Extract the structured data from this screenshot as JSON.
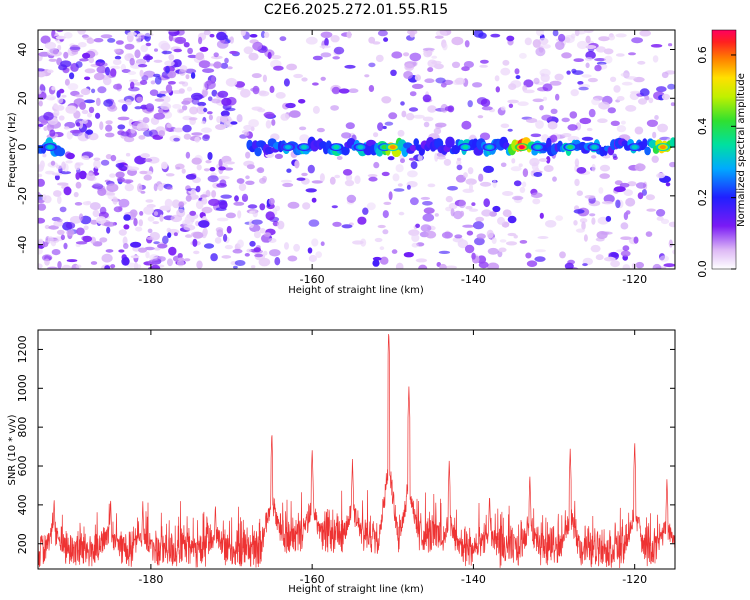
{
  "title": "C2E6.2025.272.01.55.R15",
  "chart_data": [
    {
      "type": "heatmap",
      "xlabel": "Height of straight line (km)",
      "ylabel": "Frequency (Hz)",
      "xlim": [
        -194,
        -115
      ],
      "ylim": [
        -50,
        48
      ],
      "x_ticks": [
        -180,
        -160,
        -140,
        -120
      ],
      "y_ticks": [
        -40,
        -20,
        0,
        20,
        40
      ],
      "colorbar": {
        "label": "Normalized spectral amplitude",
        "range": [
          0.0,
          0.67
        ],
        "ticks": [
          0.0,
          0.2,
          0.4,
          0.6
        ]
      },
      "band_center_hz": 0,
      "band_hotspots": [
        {
          "x": -192.5,
          "amp": 0.3
        },
        {
          "x": -163,
          "amp": 0.28
        },
        {
          "x": -161,
          "amp": 0.3
        },
        {
          "x": -157,
          "amp": 0.32
        },
        {
          "x": -154,
          "amp": 0.3
        },
        {
          "x": -151,
          "amp": 0.38
        },
        {
          "x": -150,
          "amp": 0.55
        },
        {
          "x": -141,
          "amp": 0.32
        },
        {
          "x": -138,
          "amp": 0.3
        },
        {
          "x": -134,
          "amp": 0.67
        },
        {
          "x": -132,
          "amp": 0.3
        },
        {
          "x": -128,
          "amp": 0.35
        },
        {
          "x": -125,
          "amp": 0.3
        },
        {
          "x": -120,
          "amp": 0.3
        },
        {
          "x": -116.5,
          "amp": 0.55
        }
      ]
    },
    {
      "type": "line",
      "xlabel": "Height of straight line (km)",
      "ylabel": "SNR (10 * v/v)",
      "xlim": [
        -194,
        -115
      ],
      "ylim": [
        70,
        1300
      ],
      "x_ticks": [
        -180,
        -160,
        -140,
        -120
      ],
      "y_ticks": [
        200,
        400,
        600,
        800,
        1000,
        1200
      ],
      "series": [
        {
          "name": "SNR",
          "color": "#ee3333",
          "peaks": [
            {
              "x": -192,
              "y": 440
            },
            {
              "x": -185,
              "y": 440
            },
            {
              "x": -181,
              "y": 420
            },
            {
              "x": -172,
              "y": 410
            },
            {
              "x": -165,
              "y": 780
            },
            {
              "x": -160,
              "y": 690
            },
            {
              "x": -155,
              "y": 640
            },
            {
              "x": -150.5,
              "y": 1300
            },
            {
              "x": -148,
              "y": 1010
            },
            {
              "x": -143,
              "y": 640
            },
            {
              "x": -138,
              "y": 460
            },
            {
              "x": -133,
              "y": 560
            },
            {
              "x": -128,
              "y": 690
            },
            {
              "x": -120,
              "y": 730
            },
            {
              "x": -116,
              "y": 540
            }
          ]
        }
      ]
    }
  ],
  "colors": {
    "band_low": "#7a1bf5",
    "band_high": "#ff0000",
    "line": "#ee3333"
  }
}
